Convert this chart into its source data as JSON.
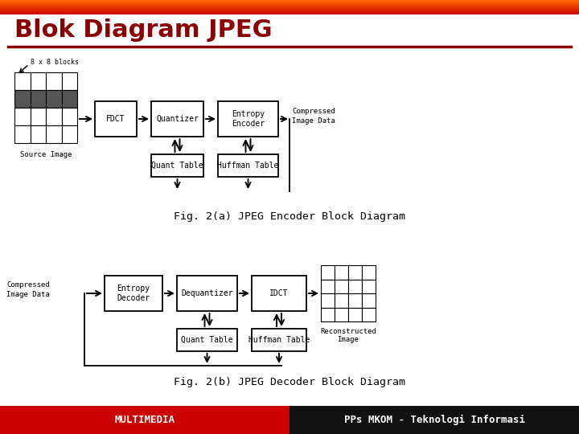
{
  "title": "Blok Diagram JPEG",
  "title_color": "#8B0000",
  "bg_color": "#FFFFFF",
  "fig_2a_caption": "Fig. 2(a) JPEG Encoder Block Diagram",
  "fig_2b_caption": "Fig. 2(b) JPEG Decoder Block Diagram",
  "footer_left_text": "MULTIMEDIA",
  "footer_right_text": "PPs MKOM - Teknologi Informasi",
  "footer_left_bg": "#CC0000",
  "footer_right_bg": "#111111",
  "footer_text_color": "#FFFFFF",
  "line_color": "#000000",
  "box_fill": "#FFFFFF",
  "blocks_label": "8 x 8 blocks",
  "source_label": "Source Image",
  "compressed_enc": "Compressed\nImage Data",
  "compressed_dec": "Compressed\nImage Data",
  "reconstructed_label": "Reconstructed\nImage"
}
